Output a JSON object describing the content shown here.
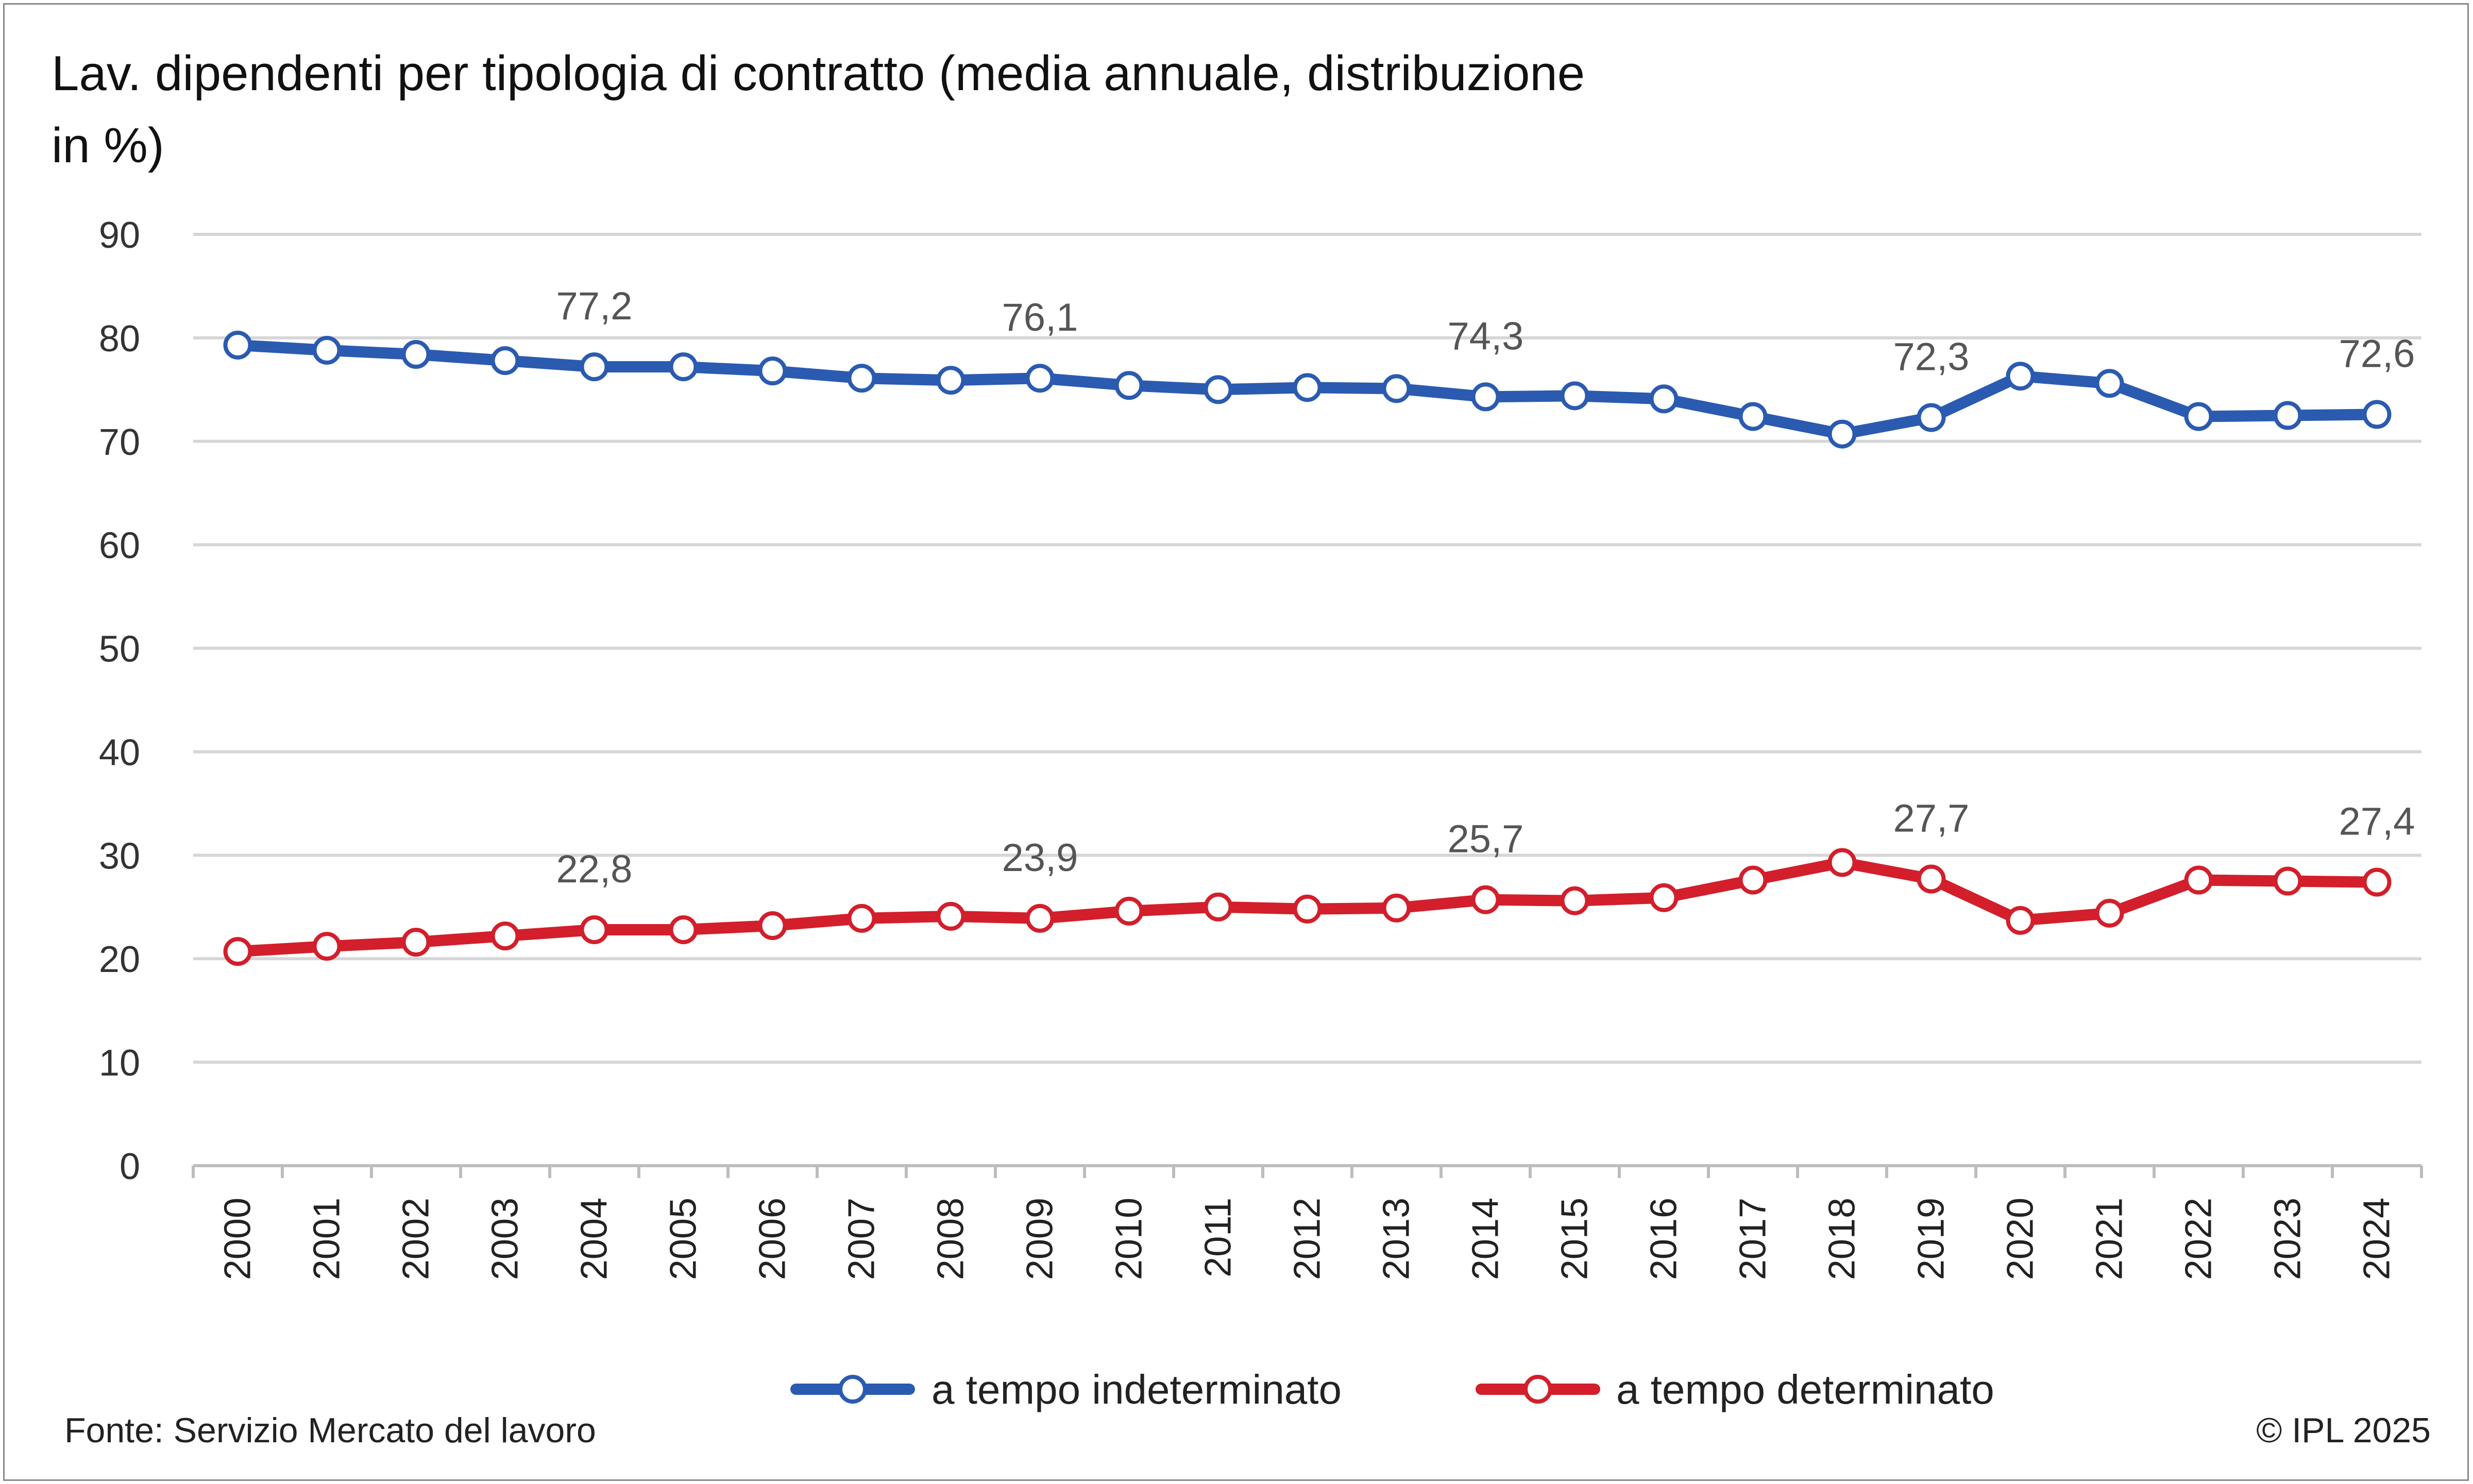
{
  "chart_data": {
    "type": "line",
    "title_lines": [
      "Lav. dipendenti per tipologia di contratto (media annuale, distribuzione",
      "in %)"
    ],
    "categories": [
      "2000",
      "2001",
      "2002",
      "2003",
      "2004",
      "2005",
      "2006",
      "2007",
      "2008",
      "2009",
      "2010",
      "2011",
      "2012",
      "2013",
      "2014",
      "2015",
      "2016",
      "2017",
      "2018",
      "2019",
      "2020",
      "2021",
      "2022",
      "2023",
      "2024"
    ],
    "ylim": [
      0,
      90
    ],
    "yticks": [
      "0",
      "10",
      "20",
      "30",
      "40",
      "50",
      "60",
      "70",
      "80",
      "90"
    ],
    "grid": true,
    "legend_position": "bottom",
    "series": [
      {
        "name": "a tempo indeterminato",
        "color": "#2b5bb0",
        "values": [
          79.3,
          78.8,
          78.4,
          77.8,
          77.2,
          77.2,
          76.8,
          76.1,
          75.9,
          76.1,
          75.4,
          75.0,
          75.2,
          75.1,
          74.3,
          74.4,
          74.1,
          72.4,
          70.7,
          72.3,
          76.3,
          75.6,
          72.4,
          72.5,
          72.6
        ],
        "labels": {
          "4": "77,2",
          "9": "76,1",
          "14": "74,3",
          "19": "72,3",
          "24": "72,6"
        }
      },
      {
        "name": "a tempo determinato",
        "color": "#d21f2b",
        "values": [
          20.7,
          21.2,
          21.6,
          22.2,
          22.8,
          22.8,
          23.2,
          23.9,
          24.1,
          23.9,
          24.6,
          25.0,
          24.8,
          24.9,
          25.7,
          25.6,
          25.9,
          27.6,
          29.3,
          27.7,
          23.7,
          24.4,
          27.6,
          27.5,
          27.4
        ],
        "labels": {
          "4": "22,8",
          "9": "23,9",
          "14": "25,7",
          "19": "27,7",
          "24": "27,4"
        }
      }
    ]
  },
  "footer": {
    "source": "Fonte: Servizio Mercato del lavoro",
    "copyright": "© IPL 2025"
  }
}
